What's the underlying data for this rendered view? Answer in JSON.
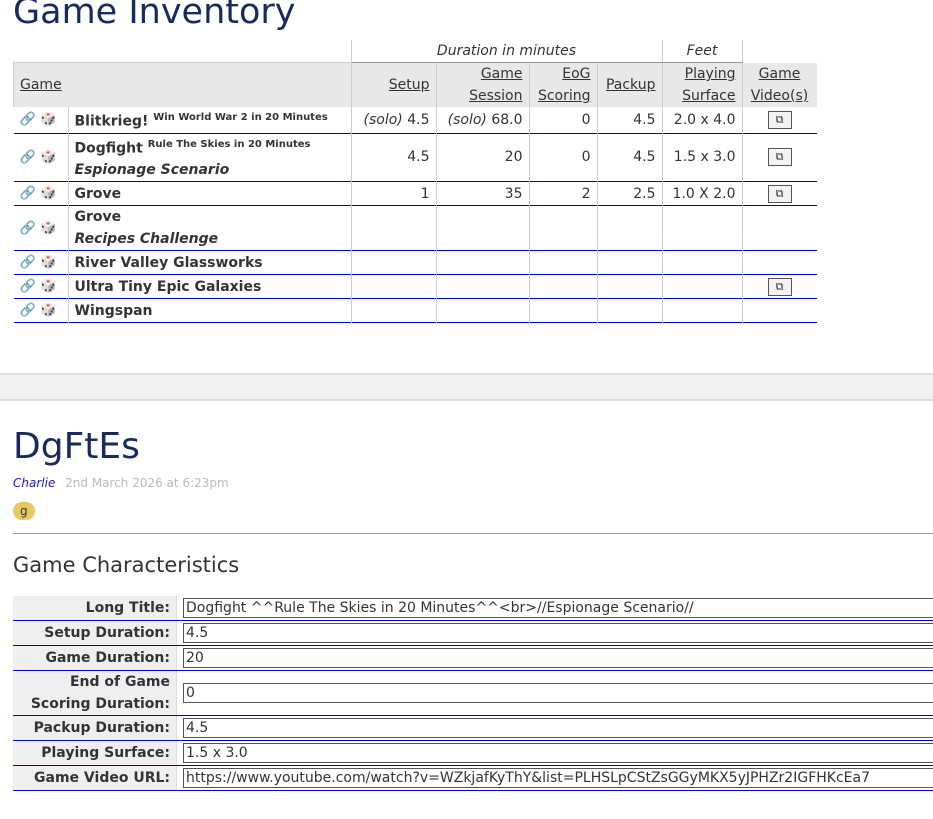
{
  "page_title": "Game Inventory",
  "inventory": {
    "group_headers": {
      "duration": "Duration in minutes",
      "feet": "Feet"
    },
    "columns": {
      "game": "Game",
      "setup": "Setup",
      "session": "Game Session",
      "eog": "EoG Scoring",
      "packup": "Packup",
      "surface": "Playing Surface",
      "video": "Game Video(s)"
    },
    "rows": [
      {
        "name": "Blitkrieg!",
        "subtitle": "Win World War 2 in 20 Minutes",
        "scenario": "",
        "setup": "(solo) 4.5",
        "session": "(solo) 68.0",
        "eog": "0",
        "packup": "4.5",
        "surface": "2.0 x 4.0",
        "video": true
      },
      {
        "name": "Dogfight",
        "subtitle": "Rule The Skies in 20 Minutes",
        "scenario": "Espionage Scenario",
        "setup": "4.5",
        "session": "20",
        "eog": "0",
        "packup": "4.5",
        "surface": "1.5 x 3.0",
        "video": true
      },
      {
        "name": "Grove",
        "subtitle": "",
        "scenario": "",
        "setup": "1",
        "session": "35",
        "eog": "2",
        "packup": "2.5",
        "surface": "1.0 X 2.0",
        "video": true
      },
      {
        "name": "Grove",
        "subtitle": "",
        "scenario": "Recipes Challenge",
        "setup": "",
        "session": "",
        "eog": "",
        "packup": "",
        "surface": "",
        "video": false
      },
      {
        "name": "River Valley Glassworks",
        "subtitle": "",
        "scenario": "",
        "setup": "",
        "session": "",
        "eog": "",
        "packup": "",
        "surface": "",
        "video": false
      },
      {
        "name": "Ultra Tiny Epic Galaxies",
        "subtitle": "",
        "scenario": "",
        "setup": "",
        "session": "",
        "eog": "",
        "packup": "",
        "surface": "",
        "video": true
      },
      {
        "name": "Wingspan",
        "subtitle": "",
        "scenario": "",
        "setup": "",
        "session": "",
        "eog": "",
        "packup": "",
        "surface": "",
        "video": false
      }
    ],
    "icons": {
      "link": "link-icon",
      "dice": "dice-icon",
      "video": "external-video-icon"
    }
  },
  "post": {
    "title": "DgFtEs",
    "author": "Charlie",
    "date": "2nd March 2026 at 6:23pm",
    "tag": "g",
    "tag_color": "#e9c860"
  },
  "characteristics": {
    "heading": "Game Characteristics",
    "fields": [
      {
        "label": "Long Title:",
        "value": "Dogfight ^^Rule The Skies in 20 Minutes^^<br>//Espionage Scenario//"
      },
      {
        "label": "Setup Duration:",
        "value": "4.5"
      },
      {
        "label": "Game Duration:",
        "value": "20"
      },
      {
        "label": "End of Game Scoring Duration:",
        "value": "0"
      },
      {
        "label": "Packup Duration:",
        "value": "4.5"
      },
      {
        "label": "Playing Surface:",
        "value": "1.5 x 3.0"
      },
      {
        "label": "Game Video URL:",
        "value": "https://www.youtube.com/watch?v=WZkjafKyThY&list=PLHSLpCStZsGGyMKX5yJPHZr2IGFHKcEa7"
      }
    ]
  }
}
